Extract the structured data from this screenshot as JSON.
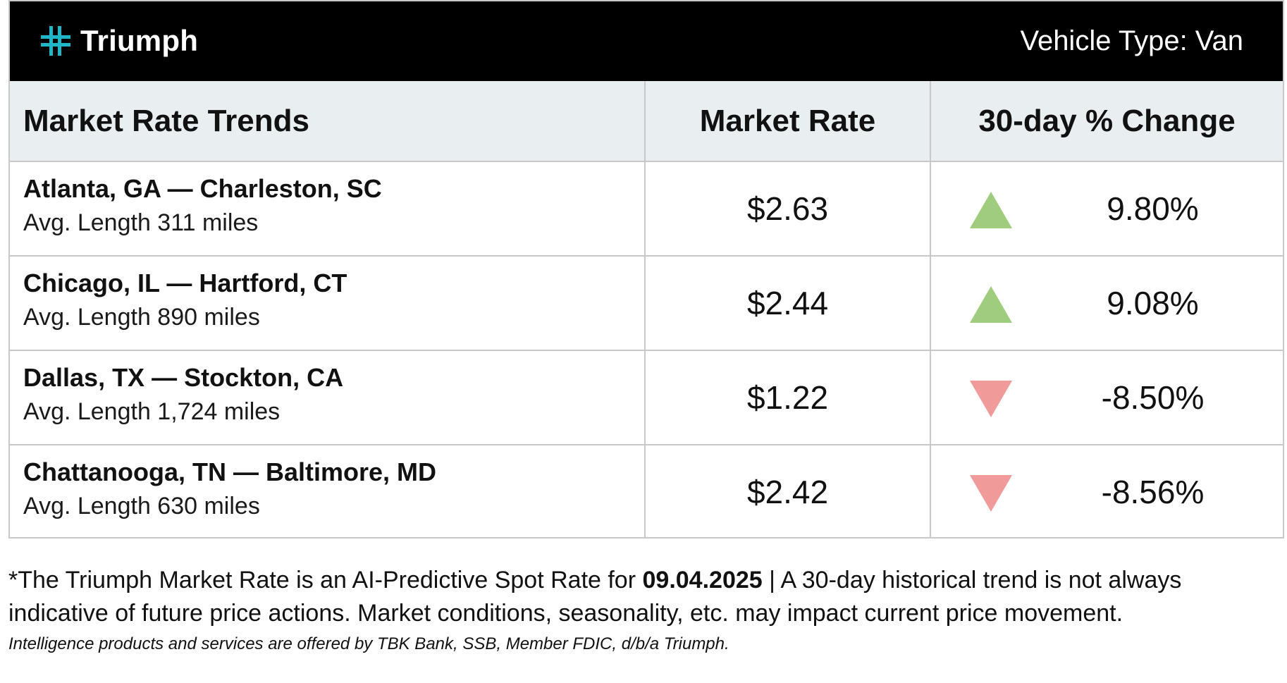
{
  "header": {
    "brand": "Triumph",
    "logo_icon": "triumph-cross-logo-icon",
    "logo_color": "#1fb6c8",
    "vehicle_type": "Vehicle Type: Van"
  },
  "table": {
    "columns": [
      "Market Rate Trends",
      "Market Rate",
      "30-day % Change"
    ],
    "rows": [
      {
        "route": "Atlanta, GA — Charleston, SC",
        "avg_length": "Avg. Length 311 miles",
        "rate": "$2.63",
        "change": "9.80%",
        "direction": "up"
      },
      {
        "route": "Chicago, IL — Hartford, CT",
        "avg_length": "Avg. Length 890 miles",
        "rate": "$2.44",
        "change": "9.08%",
        "direction": "up"
      },
      {
        "route": "Dallas, TX — Stockton, CA",
        "avg_length": "Avg. Length 1,724 miles",
        "rate": "$1.22",
        "change": "-8.50%",
        "direction": "down"
      },
      {
        "route": "Chattanooga, TN — Baltimore, MD",
        "avg_length": "Avg. Length 630 miles",
        "rate": "$2.42",
        "change": "-8.56%",
        "direction": "down"
      }
    ],
    "colors": {
      "up": "#9fcc7d",
      "down": "#f09a9a",
      "header_bg": "#e9eef0"
    }
  },
  "footnote": {
    "prefix": "*The Triumph Market Rate is an AI-Predictive Spot Rate for ",
    "date": "09.04.2025",
    "suffix": " | A 30-day historical trend is not always indicative of future price actions. Market conditions, seasonality, etc. may impact current price movement."
  },
  "disclaimer": "Intelligence products and services are offered by TBK Bank, SSB, Member FDIC, d/b/a Triumph."
}
